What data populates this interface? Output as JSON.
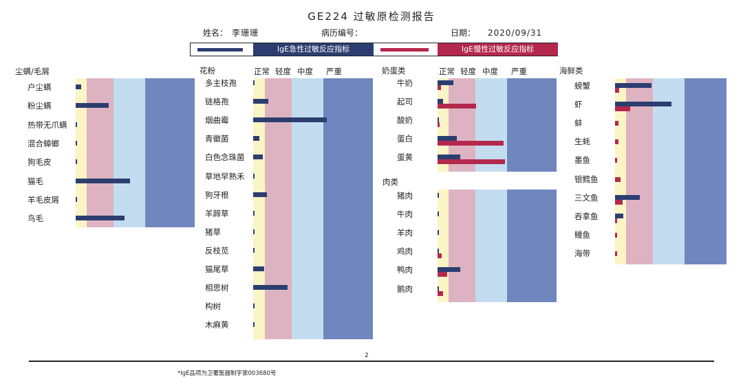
{
  "title": "GE224 过敏原检测报告",
  "info": {
    "name_label": "姓名：",
    "name_value": "李珊珊",
    "record_label": "病历编号：",
    "record_value": "",
    "date_label": "日期：",
    "date_value": "2020/09/31"
  },
  "legend": {
    "acute_label": "IgE急性过敏反应指标",
    "chronic_label": "IgE慢性过敏反应指标"
  },
  "colors": {
    "acute": "#2c3e70",
    "chronic": "#b5284e",
    "normal_band": "#fbf4c5",
    "mild_band": "#ddb3c1",
    "moderate_band": "#c3dcf0",
    "severe_band": "#6f86be"
  },
  "level_headers": [
    "正常",
    "轻度",
    "中度",
    "严重"
  ],
  "page_number": "2",
  "footnote": "*IgE品项为卫署医器制字第003680号",
  "chart_data": [
    {
      "type": "bar",
      "group": "尘螨/毛屑",
      "categories": [
        "户尘螨",
        "粉尘螨",
        "热带无爪螨",
        "混合蟑螂",
        "狗毛皮",
        "猫毛",
        "羊毛皮屑",
        "鸟毛"
      ],
      "series": [
        {
          "key": "acute",
          "values": [
            0.5,
            3.1,
            0.1,
            0.1,
            0.1,
            5.1,
            0.1,
            4.6
          ]
        },
        {
          "key": "chronic",
          "values": [
            0,
            0,
            0,
            0,
            0,
            0,
            0,
            0
          ]
        }
      ]
    },
    {
      "type": "bar",
      "group": "花粉",
      "categories": [
        "多主枝孢",
        "链格孢",
        "烟曲霉",
        "青徽菌",
        "白色念珠菌",
        "草地早熟禾",
        "狗牙根",
        "羊蹄草",
        "猪草",
        "反枝苋",
        "猫尾草",
        "相思树",
        "构树",
        "木麻黄"
      ],
      "series": [
        {
          "key": "acute",
          "values": [
            0.1,
            1.4,
            6.9,
            0.6,
            0.9,
            0.1,
            1.3,
            0.1,
            0.1,
            0.1,
            1.0,
            3.2,
            0.1,
            0.1
          ]
        },
        {
          "key": "chronic",
          "values": [
            0,
            0,
            0,
            0,
            0,
            0,
            0,
            0,
            0,
            0,
            0,
            0,
            0,
            0
          ]
        }
      ]
    },
    {
      "type": "bar",
      "group": "奶蛋类",
      "categories": [
        "牛奶",
        "起司",
        "酸奶",
        "蛋白",
        "蛋黄"
      ],
      "series": [
        {
          "key": "acute",
          "values": [
            1.5,
            0.5,
            0.1,
            1.8,
            2.1
          ]
        },
        {
          "key": "chronic",
          "values": [
            0.3,
            3.6,
            0.2,
            6.2,
            6.3
          ]
        }
      ]
    },
    {
      "type": "bar",
      "group": "肉类",
      "categories": [
        "猪肉",
        "牛肉",
        "羊肉",
        "鸡肉",
        "鸭肉",
        "鹅肉"
      ],
      "series": [
        {
          "key": "acute",
          "values": [
            0.1,
            0.1,
            0.1,
            0.1,
            2.1,
            0.1
          ]
        },
        {
          "key": "chronic",
          "values": [
            0,
            0,
            0,
            0.4,
            0.9,
            0.5
          ]
        }
      ]
    },
    {
      "type": "bar",
      "group": "海鲜类",
      "categories": [
        "螃蟹",
        "虾",
        "蚌",
        "生蚝",
        "墨鱼",
        "银鳕鱼",
        "三文鱼",
        "吞拿鱼",
        "鳗鱼",
        "海带"
      ],
      "series": [
        {
          "key": "acute",
          "values": [
            3.4,
            5.3,
            0,
            0,
            0,
            0,
            2.3,
            0.8,
            0,
            0
          ]
        },
        {
          "key": "chronic",
          "values": [
            0.4,
            1.4,
            0.3,
            0.3,
            0.2,
            0.5,
            0.7,
            0.2,
            0.2,
            0.2
          ]
        }
      ]
    }
  ]
}
